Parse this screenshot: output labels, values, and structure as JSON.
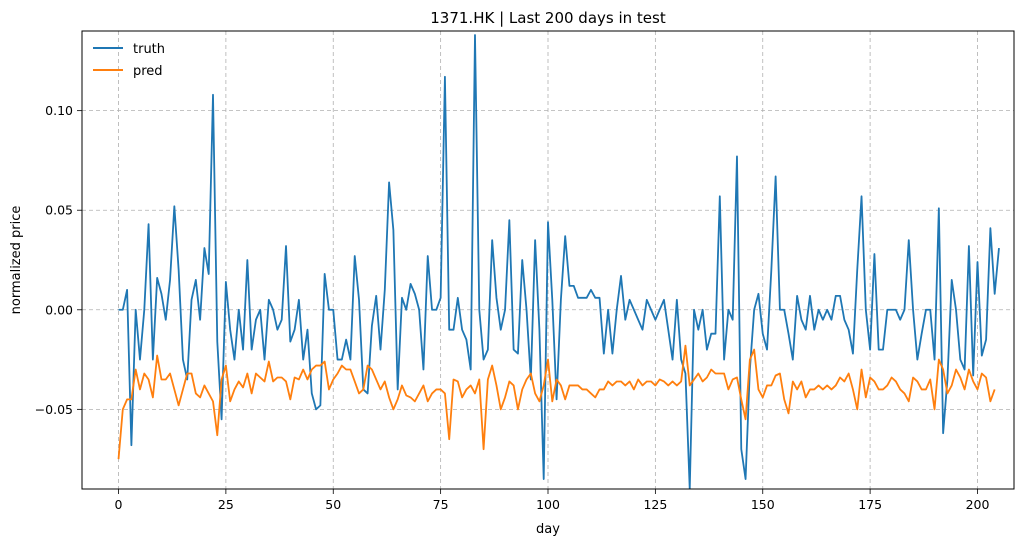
{
  "chart_data": {
    "type": "line",
    "title": "1371.HK | Last 200 days in test",
    "xlabel": "day",
    "ylabel": "normalized price",
    "xlim": [
      -8.5,
      208.5
    ],
    "ylim": [
      -0.09,
      0.14
    ],
    "xticks": [
      0,
      25,
      50,
      75,
      100,
      125,
      150,
      175,
      200
    ],
    "xtick_labels": [
      "0",
      "25",
      "50",
      "75",
      "100",
      "125",
      "150",
      "175",
      "200"
    ],
    "yticks": [
      -0.05,
      0.0,
      0.05,
      0.1
    ],
    "ytick_labels": [
      "−0.05",
      "0.00",
      "0.05",
      "0.10"
    ],
    "grid": true,
    "legend_position": "top-left",
    "series": [
      {
        "name": "truth",
        "color": "#1f77b4",
        "values": [
          0.0,
          0.0,
          0.01,
          -0.068,
          0.0,
          -0.025,
          0.0,
          0.043,
          -0.025,
          0.016,
          0.008,
          -0.005,
          0.015,
          0.052,
          0.02,
          -0.025,
          -0.035,
          0.005,
          0.015,
          -0.005,
          0.031,
          0.018,
          0.108,
          -0.016,
          -0.055,
          0.014,
          -0.01,
          -0.025,
          0.0,
          -0.02,
          0.025,
          -0.02,
          -0.005,
          0.0,
          -0.025,
          0.005,
          0.0,
          -0.01,
          -0.005,
          0.032,
          -0.016,
          -0.01,
          0.005,
          -0.025,
          -0.01,
          -0.042,
          -0.05,
          -0.048,
          0.018,
          0.0,
          0.0,
          -0.025,
          -0.025,
          -0.015,
          -0.025,
          0.027,
          0.005,
          -0.04,
          -0.042,
          -0.008,
          0.007,
          -0.02,
          0.01,
          0.064,
          0.04,
          -0.04,
          0.006,
          0.0,
          0.013,
          0.008,
          0.0,
          -0.03,
          0.027,
          0.0,
          0.0,
          0.006,
          0.117,
          -0.01,
          -0.01,
          0.006,
          -0.01,
          -0.015,
          -0.03,
          0.138,
          0.0,
          -0.025,
          -0.02,
          0.035,
          0.006,
          -0.01,
          0.0,
          0.045,
          -0.02,
          -0.022,
          0.025,
          0.0,
          -0.035,
          0.035,
          -0.01,
          -0.085,
          0.044,
          0.005,
          -0.045,
          0.005,
          0.037,
          0.012,
          0.012,
          0.006,
          0.006,
          0.006,
          0.01,
          0.006,
          0.006,
          -0.022,
          0.0,
          -0.022,
          0.0,
          0.017,
          -0.005,
          0.005,
          0.0,
          -0.005,
          -0.01,
          0.005,
          0.0,
          -0.005,
          0.0,
          0.005,
          -0.01,
          -0.025,
          0.005,
          -0.025,
          -0.032,
          -0.09,
          0.0,
          -0.01,
          0.0,
          -0.02,
          -0.012,
          -0.012,
          0.057,
          -0.025,
          0.0,
          -0.005,
          0.077,
          -0.07,
          -0.085,
          -0.03,
          0.0,
          0.008,
          -0.012,
          -0.02,
          0.02,
          0.067,
          0.0,
          0.0,
          -0.012,
          -0.025,
          0.007,
          -0.005,
          -0.01,
          0.007,
          -0.01,
          0.0,
          -0.005,
          0.0,
          -0.005,
          0.007,
          0.007,
          -0.005,
          -0.01,
          -0.022,
          0.02,
          0.057,
          0.0,
          -0.02,
          0.028,
          -0.02,
          -0.02,
          0.0,
          0.0,
          0.0,
          -0.005,
          0.0,
          0.035,
          0.0,
          -0.025,
          -0.012,
          0.0,
          0.0,
          -0.025,
          0.051,
          -0.062,
          -0.035,
          0.015,
          0.0,
          -0.025,
          -0.03,
          0.032,
          -0.033,
          0.024,
          -0.023,
          -0.015,
          0.041,
          0.008,
          0.031
        ],
        "note": ""
      },
      {
        "name": "pred",
        "color": "#ff7f0e",
        "values": [
          -0.075,
          -0.05,
          -0.045,
          -0.045,
          -0.03,
          -0.04,
          -0.032,
          -0.035,
          -0.044,
          -0.023,
          -0.035,
          -0.035,
          -0.032,
          -0.04,
          -0.048,
          -0.04,
          -0.032,
          -0.032,
          -0.042,
          -0.044,
          -0.038,
          -0.042,
          -0.046,
          -0.063,
          -0.035,
          -0.028,
          -0.046,
          -0.04,
          -0.036,
          -0.039,
          -0.032,
          -0.042,
          -0.032,
          -0.034,
          -0.036,
          -0.026,
          -0.036,
          -0.034,
          -0.034,
          -0.036,
          -0.045,
          -0.034,
          -0.035,
          -0.03,
          -0.035,
          -0.03,
          -0.028,
          -0.028,
          -0.026,
          -0.04,
          -0.035,
          -0.032,
          -0.028,
          -0.03,
          -0.03,
          -0.036,
          -0.042,
          -0.04,
          -0.028,
          -0.03,
          -0.035,
          -0.04,
          -0.036,
          -0.044,
          -0.05,
          -0.045,
          -0.038,
          -0.043,
          -0.044,
          -0.046,
          -0.042,
          -0.038,
          -0.046,
          -0.042,
          -0.04,
          -0.04,
          -0.042,
          -0.065,
          -0.035,
          -0.036,
          -0.044,
          -0.04,
          -0.038,
          -0.042,
          -0.035,
          -0.07,
          -0.035,
          -0.028,
          -0.038,
          -0.05,
          -0.044,
          -0.036,
          -0.038,
          -0.05,
          -0.04,
          -0.035,
          -0.032,
          -0.042,
          -0.046,
          -0.038,
          -0.025,
          -0.046,
          -0.035,
          -0.038,
          -0.045,
          -0.038,
          -0.038,
          -0.038,
          -0.04,
          -0.04,
          -0.042,
          -0.044,
          -0.04,
          -0.04,
          -0.036,
          -0.038,
          -0.036,
          -0.036,
          -0.038,
          -0.036,
          -0.04,
          -0.035,
          -0.038,
          -0.036,
          -0.036,
          -0.038,
          -0.035,
          -0.036,
          -0.038,
          -0.036,
          -0.038,
          -0.036,
          -0.018,
          -0.038,
          -0.035,
          -0.032,
          -0.036,
          -0.034,
          -0.03,
          -0.032,
          -0.032,
          -0.032,
          -0.04,
          -0.035,
          -0.034,
          -0.045,
          -0.055,
          -0.025,
          -0.02,
          -0.04,
          -0.044,
          -0.038,
          -0.038,
          -0.033,
          -0.032,
          -0.045,
          -0.052,
          -0.036,
          -0.04,
          -0.036,
          -0.044,
          -0.04,
          -0.04,
          -0.038,
          -0.04,
          -0.038,
          -0.04,
          -0.038,
          -0.034,
          -0.036,
          -0.032,
          -0.04,
          -0.05,
          -0.03,
          -0.044,
          -0.034,
          -0.036,
          -0.04,
          -0.04,
          -0.038,
          -0.034,
          -0.036,
          -0.04,
          -0.042,
          -0.046,
          -0.034,
          -0.036,
          -0.04,
          -0.04,
          -0.035,
          -0.05,
          -0.025,
          -0.03,
          -0.042,
          -0.038,
          -0.03,
          -0.034,
          -0.04,
          -0.03,
          -0.036,
          -0.04,
          -0.032,
          -0.034,
          -0.046,
          -0.04
        ]
      }
    ]
  }
}
